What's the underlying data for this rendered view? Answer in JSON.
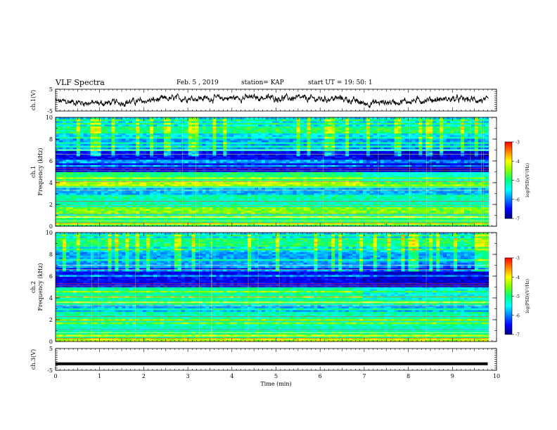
{
  "header": {
    "title": "VLF Spectra",
    "date": "Feb. 5 , 2019",
    "station": "station= KAP",
    "start": "start  UT =   19: 50: 1"
  },
  "colorbar": {
    "label": "log(PSD)(V²/Hz)",
    "ticks": [
      "-3",
      "-4",
      "-5",
      "-6",
      "-7"
    ],
    "colors": [
      "#000080",
      "#0000ff",
      "#0080ff",
      "#00ffff",
      "#00ff80",
      "#80ff00",
      "#ffff00",
      "#ff8000",
      "#ff0000",
      "#ffffff"
    ]
  },
  "chart_data": [
    {
      "type": "line",
      "panel": "ch1",
      "ylabel": "ch.1(V)",
      "ylim": [
        -5,
        5
      ],
      "yticks": [
        "5",
        "-5"
      ],
      "xlim": [
        0,
        10
      ],
      "trend": {
        "x": [
          0,
          0.5,
          1,
          1.5,
          2,
          2.5,
          3,
          3.5,
          4,
          4.5,
          5,
          5.5,
          6,
          6.5,
          7,
          7.5,
          8,
          8.5,
          9,
          9.5,
          9.8
        ],
        "y": [
          -0.5,
          -1.0,
          -1.5,
          -1.0,
          -0.5,
          0.5,
          1.0,
          0.8,
          1.0,
          1.2,
          1.0,
          0.8,
          0.5,
          0.8,
          -1.5,
          -1.0,
          -0.5,
          0.2,
          0.5,
          0.2,
          -0.5
        ]
      }
    },
    {
      "type": "heatmap",
      "panel": "ch2spec",
      "ylabel": "ch.1\nFrequency (kHz)",
      "ylim": [
        0,
        10
      ],
      "yticks": [
        "0",
        "2",
        "4",
        "6",
        "8",
        "10"
      ],
      "xlim": [
        0,
        10
      ],
      "colorbar_range": [
        -7,
        -3
      ]
    },
    {
      "type": "heatmap",
      "panel": "ch3spec",
      "ylabel": "ch.2\nFrequency (kHz)",
      "ylim": [
        0,
        10
      ],
      "yticks": [
        "0",
        "2",
        "4",
        "6",
        "8",
        "10"
      ],
      "xlim": [
        0,
        10
      ],
      "colorbar_range": [
        -7,
        -3
      ]
    },
    {
      "type": "line",
      "panel": "ch3",
      "ylabel": "ch.3(V)",
      "ylim": [
        -5,
        5
      ],
      "yticks": [
        "5",
        "-5"
      ],
      "xlim": [
        0,
        10
      ],
      "xticks": [
        "0",
        "1",
        "2",
        "3",
        "4",
        "5",
        "6",
        "7",
        "8",
        "9",
        "10"
      ],
      "xlabel": "Time (min)",
      "trend": {
        "x": [
          0,
          9.8
        ],
        "y": [
          -2.0,
          -2.0
        ]
      }
    }
  ]
}
